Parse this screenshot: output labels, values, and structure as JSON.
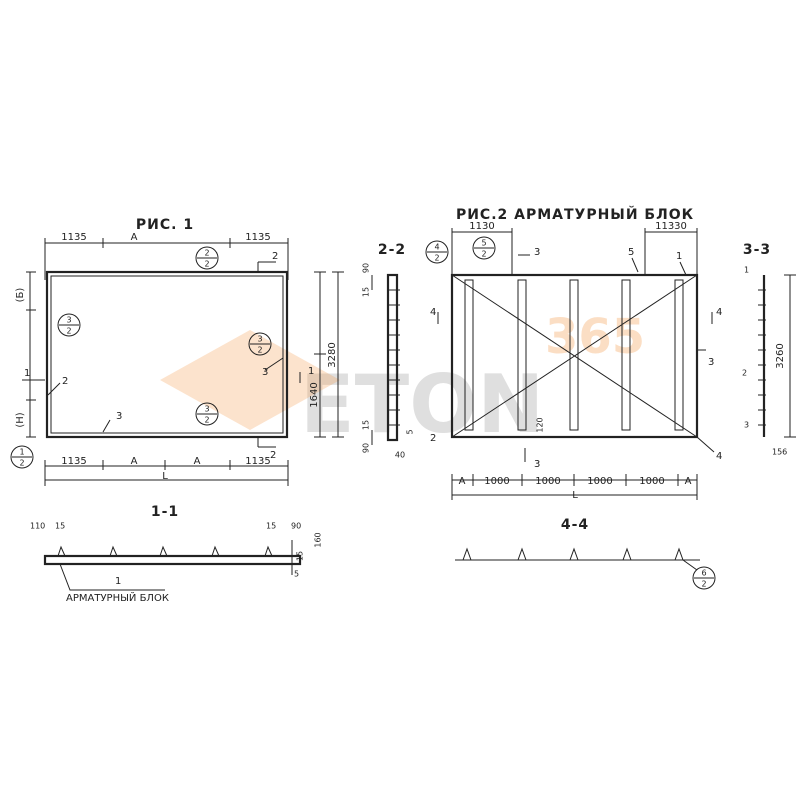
{
  "watermark": {
    "digits": "365",
    "word": "ETON"
  },
  "fig1": {
    "title": "РИС. 1",
    "top_dims": [
      "1135",
      "А",
      "1135"
    ],
    "bottom_dims": [
      "1135",
      "А",
      "А",
      "1135"
    ],
    "total": "L",
    "side_labels": [
      "(Б)",
      "(Н)"
    ],
    "leaders": [
      "1",
      "2",
      "3",
      "3"
    ],
    "right_dims": [
      "1640",
      "3280"
    ],
    "section_marks": [
      "2",
      "2",
      "1",
      "1"
    ],
    "callouts": [
      {
        "top": "2",
        "bottom": "2"
      },
      {
        "top": "3",
        "bottom": "2"
      },
      {
        "top": "3",
        "bottom": "2"
      },
      {
        "top": "3",
        "bottom": "2"
      },
      {
        "top": "1",
        "bottom": "2"
      }
    ]
  },
  "section_2_2": {
    "title": "2-2",
    "dims": [
      "90",
      "15",
      "15",
      "90",
      "5",
      "40"
    ]
  },
  "section_1_1": {
    "title": "1-1",
    "dims": [
      "110",
      "15",
      "15",
      "90",
      "160",
      "15",
      "5"
    ],
    "leader": "1",
    "note": "АРМАТУРНЫЙ БЛОК"
  },
  "fig2": {
    "title": "РИС.2 АРМАТУРНЫЙ БЛОК",
    "top_dims": [
      "1130",
      "11330"
    ],
    "bottom_dims": [
      "А",
      "1000",
      "1000",
      "1000",
      "1000",
      "А"
    ],
    "total": "L",
    "leaders": [
      "5",
      "1",
      "3",
      "4",
      "2"
    ],
    "inner_dim": "120",
    "section_marks": [
      "3",
      "3",
      "4",
      "4"
    ],
    "callouts": [
      {
        "top": "4",
        "bottom": "2"
      },
      {
        "top": "5",
        "bottom": "2"
      }
    ]
  },
  "section_3_3": {
    "title": "3-3",
    "dim": "3260",
    "leaders": [
      "1",
      "2",
      "3"
    ],
    "bottom_dim": "156"
  },
  "section_4_4": {
    "title": "4-4",
    "callout": {
      "top": "6",
      "bottom": "2"
    }
  }
}
